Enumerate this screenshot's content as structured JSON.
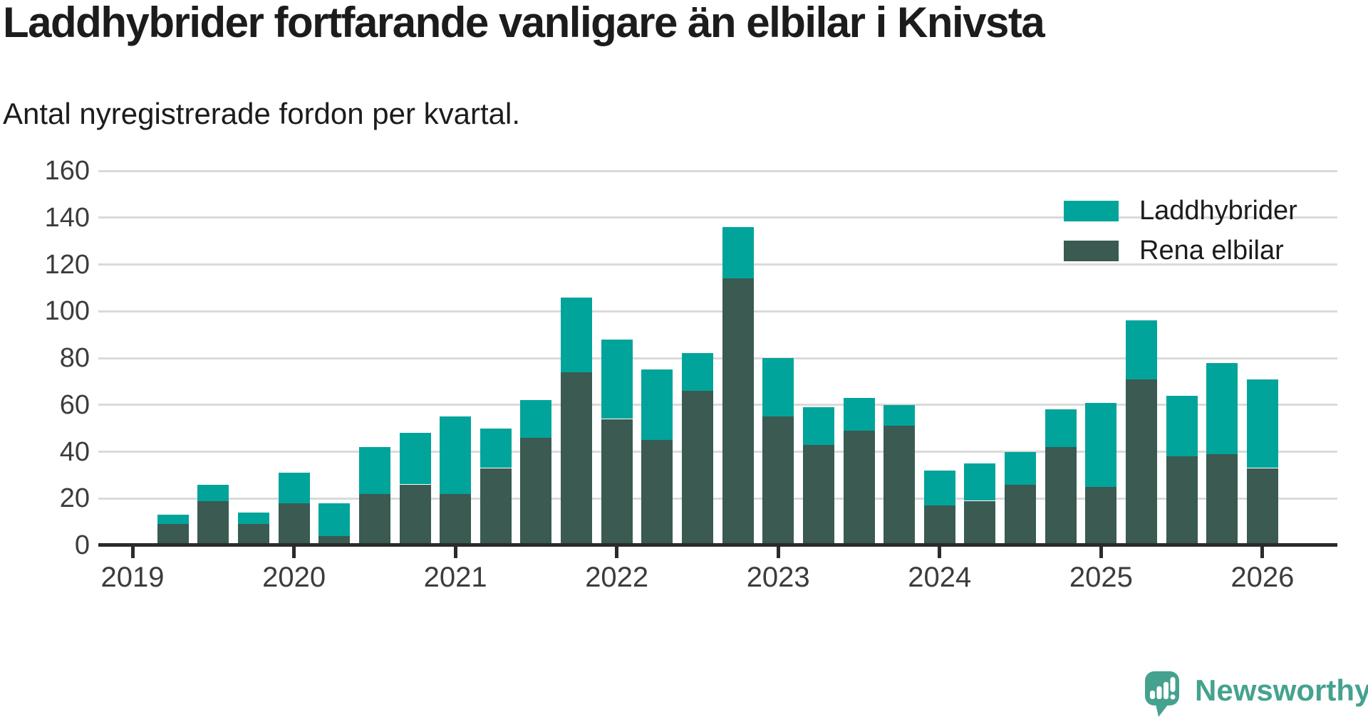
{
  "page": {
    "title": "Laddhybrider fortfarande vanligare än elbilar i Knivsta",
    "subtitle": "Antal nyregistrerade fordon per kvartal."
  },
  "legend": {
    "items": [
      {
        "label": "Laddhybrider",
        "key": "laddhybrider"
      },
      {
        "label": "Rena elbilar",
        "key": "elbilar"
      }
    ]
  },
  "colors": {
    "laddhybrider": "#00a49a",
    "elbilar": "#3a5a52",
    "gridline": "#dadada",
    "axis": "#2b2b2b",
    "text": "#1c1c1c",
    "tick_label": "#3c3c3c",
    "brand": "#45a28f"
  },
  "chart_data": {
    "type": "bar",
    "stacked": true,
    "title": "Laddhybrider fortfarande vanligare än elbilar i Knivsta",
    "subtitle": "Antal nyregistrerade fordon per kvartal.",
    "xlabel": "",
    "ylabel": "",
    "ylim": [
      0,
      160
    ],
    "y_ticks": [
      0,
      20,
      40,
      60,
      80,
      100,
      120,
      140,
      160
    ],
    "x_years": [
      2019,
      2020,
      2021,
      2022,
      2023,
      2024,
      2025,
      2026
    ],
    "grid": "horizontal",
    "legend_position": "top-right",
    "series_names": [
      "Laddhybrider",
      "Rena elbilar"
    ],
    "quarters": [
      {
        "label": "2019 Q2",
        "year": 2019,
        "q": 2,
        "elbilar": 9,
        "laddhybrider": 4
      },
      {
        "label": "2019 Q3",
        "year": 2019,
        "q": 3,
        "elbilar": 19,
        "laddhybrider": 7
      },
      {
        "label": "2019 Q4",
        "year": 2019,
        "q": 4,
        "elbilar": 9,
        "laddhybrider": 5
      },
      {
        "label": "2020 Q1",
        "year": 2020,
        "q": 1,
        "elbilar": 18,
        "laddhybrider": 13
      },
      {
        "label": "2020 Q2",
        "year": 2020,
        "q": 2,
        "elbilar": 4,
        "laddhybrider": 14
      },
      {
        "label": "2020 Q3",
        "year": 2020,
        "q": 3,
        "elbilar": 22,
        "laddhybrider": 20
      },
      {
        "label": "2020 Q4",
        "year": 2020,
        "q": 4,
        "elbilar": 26,
        "laddhybrider": 22
      },
      {
        "label": "2021 Q1",
        "year": 2021,
        "q": 1,
        "elbilar": 22,
        "laddhybrider": 33
      },
      {
        "label": "2021 Q2",
        "year": 2021,
        "q": 2,
        "elbilar": 33,
        "laddhybrider": 17
      },
      {
        "label": "2021 Q3",
        "year": 2021,
        "q": 3,
        "elbilar": 46,
        "laddhybrider": 16
      },
      {
        "label": "2021 Q4",
        "year": 2021,
        "q": 4,
        "elbilar": 74,
        "laddhybrider": 32
      },
      {
        "label": "2022 Q1",
        "year": 2022,
        "q": 1,
        "elbilar": 54,
        "laddhybrider": 34
      },
      {
        "label": "2022 Q2",
        "year": 2022,
        "q": 2,
        "elbilar": 45,
        "laddhybrider": 30
      },
      {
        "label": "2022 Q3",
        "year": 2022,
        "q": 3,
        "elbilar": 66,
        "laddhybrider": 16
      },
      {
        "label": "2022 Q4",
        "year": 2022,
        "q": 4,
        "elbilar": 114,
        "laddhybrider": 22
      },
      {
        "label": "2023 Q1",
        "year": 2023,
        "q": 1,
        "elbilar": 55,
        "laddhybrider": 25
      },
      {
        "label": "2023 Q2",
        "year": 2023,
        "q": 2,
        "elbilar": 43,
        "laddhybrider": 16
      },
      {
        "label": "2023 Q3",
        "year": 2023,
        "q": 3,
        "elbilar": 49,
        "laddhybrider": 14
      },
      {
        "label": "2023 Q4",
        "year": 2023,
        "q": 4,
        "elbilar": 51,
        "laddhybrider": 9
      },
      {
        "label": "2024 Q1",
        "year": 2024,
        "q": 1,
        "elbilar": 17,
        "laddhybrider": 15
      },
      {
        "label": "2024 Q2",
        "year": 2024,
        "q": 2,
        "elbilar": 19,
        "laddhybrider": 16
      },
      {
        "label": "2024 Q3",
        "year": 2024,
        "q": 3,
        "elbilar": 26,
        "laddhybrider": 14
      },
      {
        "label": "2024 Q4",
        "year": 2024,
        "q": 4,
        "elbilar": 42,
        "laddhybrider": 16
      },
      {
        "label": "2025 Q1",
        "year": 2025,
        "q": 1,
        "elbilar": 25,
        "laddhybrider": 36
      },
      {
        "label": "2025 Q2",
        "year": 2025,
        "q": 2,
        "elbilar": 71,
        "laddhybrider": 25
      },
      {
        "label": "2025 Q3",
        "year": 2025,
        "q": 3,
        "elbilar": 38,
        "laddhybrider": 26
      },
      {
        "label": "2025 Q4",
        "year": 2025,
        "q": 4,
        "elbilar": 39,
        "laddhybrider": 39
      },
      {
        "label": "2026 Q1",
        "year": 2026,
        "q": 1,
        "elbilar": 33,
        "laddhybrider": 38
      }
    ]
  },
  "logo": {
    "text": "Newsworthy"
  }
}
